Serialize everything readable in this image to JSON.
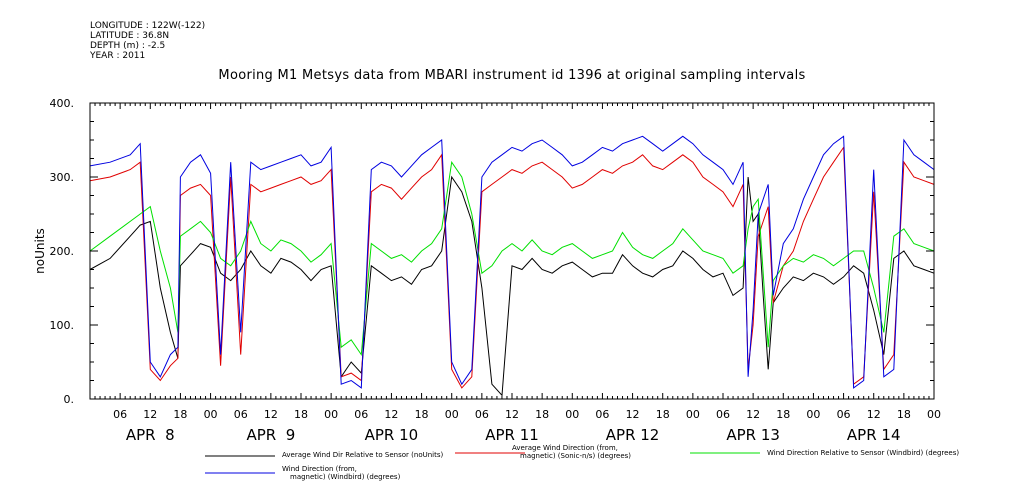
{
  "meta": {
    "longitude": "LONGITUDE : 122W(-122)",
    "latitude": "LATITUDE : 36.8N",
    "depth": "DEPTH (m) : -2.5",
    "year": "YEAR : 2011"
  },
  "colors": {
    "black": "#000000",
    "red": "#e00000",
    "green": "#00e000",
    "blue": "#0000e0"
  },
  "chart_data": {
    "type": "line",
    "title": "Mooring M1 Metsys data from MBARI instrument id 1396 at original sampling intervals",
    "ylabel": "noUnits",
    "ylim": [
      0,
      400
    ],
    "yticks": [
      0,
      100,
      200,
      300,
      400
    ],
    "ytick_labels": [
      "0.",
      "100.",
      "200.",
      "300.",
      "400."
    ],
    "xlim_hours": [
      0,
      168
    ],
    "hour_ticks": [
      "06",
      "12",
      "18",
      "00",
      "06",
      "12",
      "18",
      "00",
      "06",
      "12",
      "18",
      "00",
      "06",
      "12",
      "18",
      "00",
      "06",
      "12",
      "18",
      "00",
      "06",
      "12",
      "18",
      "00",
      "06",
      "12",
      "18",
      "00"
    ],
    "day_labels": [
      "APR  8",
      "APR  9",
      "APR 10",
      "APR 11",
      "APR 12",
      "APR 13",
      "APR 14"
    ],
    "grid": false,
    "series": [
      {
        "name": "Average Wind Dir Relative to Sensor (noUnits)",
        "legend": [
          "Average Wind Dir Relative to Sensor (noUnits)"
        ],
        "color": "black",
        "x": [
          0,
          4,
          8,
          10,
          12,
          14,
          16,
          17.5,
          18,
          20,
          22,
          24,
          26,
          28,
          30,
          32,
          34,
          36,
          38,
          40,
          42,
          44,
          46,
          48,
          50,
          52,
          54,
          56,
          58,
          60,
          62,
          64,
          66,
          68,
          70,
          72,
          74,
          76,
          78,
          80,
          82,
          84,
          86,
          88,
          90,
          92,
          94,
          96,
          98,
          100,
          102,
          104,
          106,
          108,
          110,
          112,
          114,
          116,
          118,
          120,
          122,
          124,
          126,
          128,
          130,
          131,
          132,
          133,
          134,
          135,
          136,
          138,
          140,
          142,
          144,
          146,
          148,
          150,
          152,
          154,
          156,
          158,
          160,
          162,
          164,
          166,
          168
        ],
        "y": [
          175,
          190,
          220,
          235,
          240,
          150,
          90,
          55,
          180,
          195,
          210,
          205,
          170,
          160,
          175,
          200,
          180,
          170,
          190,
          185,
          175,
          160,
          175,
          180,
          30,
          50,
          35,
          180,
          170,
          160,
          165,
          155,
          175,
          180,
          200,
          300,
          280,
          240,
          150,
          20,
          5,
          180,
          175,
          190,
          175,
          170,
          180,
          185,
          175,
          165,
          170,
          170,
          195,
          180,
          170,
          165,
          175,
          180,
          200,
          190,
          175,
          165,
          170,
          140,
          150,
          300,
          240,
          250,
          140,
          40,
          130,
          150,
          165,
          160,
          170,
          165,
          155,
          165,
          180,
          170,
          120,
          60,
          190,
          200,
          180,
          175,
          170
        ]
      },
      {
        "name": "Average Wind Direction (from, magnetic) (Sonic-n/s) (degrees)",
        "legend": [
          "Average Wind Direction (from,",
          "magnetic) (Sonic-n/s) (degrees)"
        ],
        "color": "red",
        "x": [
          0,
          4,
          8,
          10,
          12,
          14,
          16,
          17.5,
          18,
          20,
          22,
          24,
          26,
          28,
          30,
          32,
          34,
          36,
          38,
          40,
          42,
          44,
          46,
          48,
          50,
          52,
          54,
          56,
          58,
          60,
          62,
          64,
          66,
          68,
          70,
          72,
          74,
          76,
          78,
          80,
          82,
          84,
          86,
          88,
          90,
          92,
          94,
          96,
          98,
          100,
          102,
          104,
          106,
          108,
          110,
          112,
          114,
          116,
          118,
          120,
          122,
          124,
          126,
          128,
          130,
          131,
          132,
          133,
          134,
          135,
          136,
          138,
          140,
          142,
          144,
          146,
          148,
          150,
          152,
          154,
          156,
          158,
          160,
          162,
          164,
          166,
          168
        ],
        "y": [
          295,
          300,
          310,
          320,
          40,
          25,
          45,
          55,
          275,
          285,
          290,
          275,
          45,
          300,
          60,
          290,
          280,
          285,
          290,
          295,
          300,
          290,
          295,
          310,
          30,
          35,
          25,
          280,
          290,
          285,
          270,
          285,
          300,
          310,
          330,
          40,
          15,
          30,
          280,
          290,
          300,
          310,
          305,
          315,
          320,
          310,
          300,
          285,
          290,
          300,
          310,
          305,
          315,
          320,
          330,
          315,
          310,
          320,
          330,
          320,
          300,
          290,
          280,
          260,
          290,
          40,
          100,
          220,
          240,
          260,
          130,
          180,
          200,
          240,
          270,
          300,
          320,
          340,
          20,
          30,
          280,
          40,
          60,
          320,
          300,
          295,
          290
        ]
      },
      {
        "name": "Wind Direction Relative to Sensor (Windbird) (degrees)",
        "legend": [
          "Wind Direction Relative to Sensor (Windbird) (degrees)"
        ],
        "color": "green",
        "x": [
          0,
          4,
          8,
          10,
          12,
          14,
          16,
          17.5,
          18,
          20,
          22,
          24,
          26,
          28,
          30,
          32,
          34,
          36,
          38,
          40,
          42,
          44,
          46,
          48,
          50,
          52,
          54,
          56,
          58,
          60,
          62,
          64,
          66,
          68,
          70,
          72,
          74,
          76,
          78,
          80,
          82,
          84,
          86,
          88,
          90,
          92,
          94,
          96,
          98,
          100,
          102,
          104,
          106,
          108,
          110,
          112,
          114,
          116,
          118,
          120,
          122,
          124,
          126,
          128,
          130,
          131,
          132,
          133,
          134,
          135,
          136,
          138,
          140,
          142,
          144,
          146,
          148,
          150,
          152,
          154,
          156,
          158,
          160,
          162,
          164,
          166,
          168
        ],
        "y": [
          200,
          220,
          240,
          250,
          260,
          200,
          150,
          90,
          220,
          230,
          240,
          225,
          190,
          180,
          200,
          240,
          210,
          200,
          215,
          210,
          200,
          185,
          195,
          210,
          70,
          80,
          60,
          210,
          200,
          190,
          195,
          185,
          200,
          210,
          230,
          320,
          300,
          250,
          170,
          180,
          200,
          210,
          200,
          215,
          200,
          195,
          205,
          210,
          200,
          190,
          195,
          200,
          225,
          205,
          195,
          190,
          200,
          210,
          230,
          215,
          200,
          195,
          190,
          170,
          180,
          230,
          260,
          270,
          170,
          70,
          160,
          180,
          190,
          185,
          195,
          190,
          180,
          190,
          200,
          200,
          150,
          90,
          220,
          230,
          210,
          205,
          200
        ]
      },
      {
        "name": "Wind Direction (from, magnetic) (Windbird) (degrees)",
        "legend": [
          "Wind Direction (from,",
          "magnetic) (Windbird) (degrees)"
        ],
        "color": "blue",
        "x": [
          0,
          4,
          8,
          10,
          12,
          14,
          16,
          17.5,
          18,
          20,
          22,
          24,
          26,
          28,
          30,
          32,
          34,
          36,
          38,
          40,
          42,
          44,
          46,
          48,
          50,
          52,
          54,
          56,
          58,
          60,
          62,
          64,
          66,
          68,
          70,
          72,
          74,
          76,
          78,
          80,
          82,
          84,
          86,
          88,
          90,
          92,
          94,
          96,
          98,
          100,
          102,
          104,
          106,
          108,
          110,
          112,
          114,
          116,
          118,
          120,
          122,
          124,
          126,
          128,
          130,
          131,
          132,
          133,
          134,
          135,
          136,
          138,
          140,
          142,
          144,
          146,
          148,
          150,
          152,
          154,
          156,
          158,
          160,
          162,
          164,
          166,
          168
        ],
        "y": [
          315,
          320,
          330,
          345,
          50,
          30,
          60,
          70,
          300,
          320,
          330,
          305,
          60,
          320,
          90,
          320,
          310,
          315,
          320,
          325,
          330,
          315,
          320,
          340,
          20,
          25,
          15,
          310,
          320,
          315,
          300,
          315,
          330,
          340,
          350,
          50,
          20,
          40,
          300,
          320,
          330,
          340,
          335,
          345,
          350,
          340,
          330,
          315,
          320,
          330,
          340,
          335,
          345,
          350,
          355,
          345,
          335,
          345,
          355,
          345,
          330,
          320,
          310,
          290,
          320,
          30,
          120,
          250,
          270,
          290,
          140,
          210,
          230,
          270,
          300,
          330,
          345,
          355,
          15,
          25,
          310,
          30,
          40,
          350,
          330,
          320,
          310
        ]
      }
    ]
  }
}
